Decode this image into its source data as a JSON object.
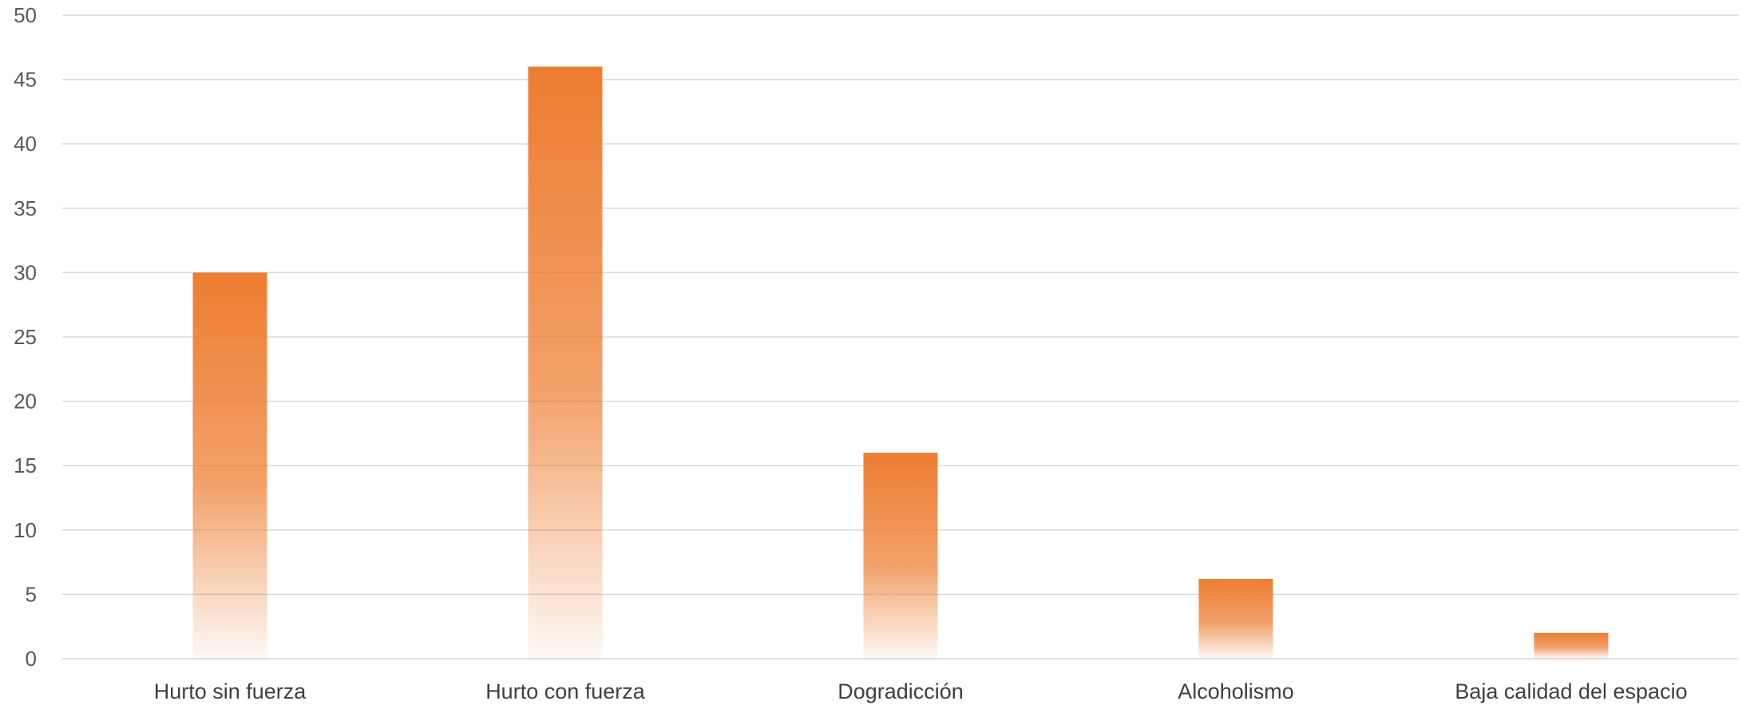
{
  "chart_data": {
    "type": "bar",
    "categories": [
      "Hurto sin fuerza",
      "Hurto con fuerza",
      "Dogradicción",
      "Alcoholismo",
      "Baja calidad del espacio"
    ],
    "values": [
      30,
      46,
      16,
      6.2,
      2
    ],
    "title": "",
    "xlabel": "",
    "ylabel": "",
    "ylim": [
      0,
      50
    ],
    "yticks": [
      "0",
      "5",
      "10",
      "15",
      "20",
      "25",
      "30",
      "35",
      "40",
      "45",
      "50"
    ],
    "grid": true,
    "legend": "none",
    "bar_color": "#ed7d31",
    "bar_fade_color": "#ffffff"
  }
}
